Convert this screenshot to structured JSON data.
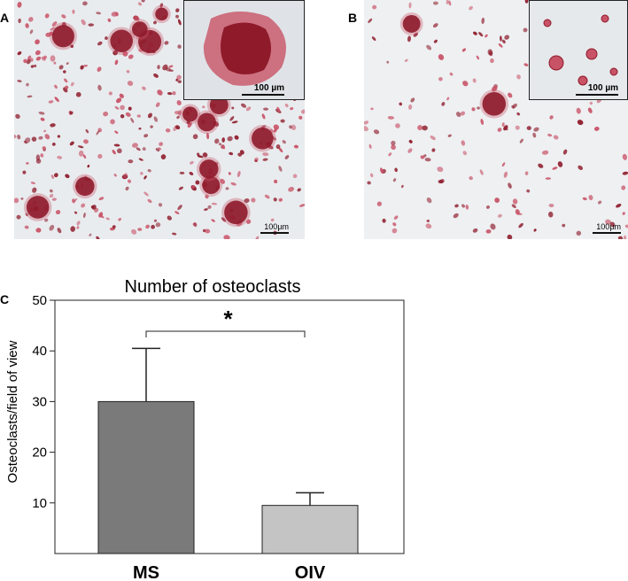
{
  "panels": {
    "a": {
      "letter": "A",
      "inset_scale": "100 µm",
      "main_scale": "100µm"
    },
    "b": {
      "letter": "B",
      "inset_scale": "100 µm",
      "main_scale": "100µm"
    },
    "c": {
      "letter": "C"
    }
  },
  "colors": {
    "stain_dark": "#8e1a2a",
    "stain_light": "#c85266",
    "background_a": "#e9ecef",
    "background_b": "#eef0f2",
    "bar_ms": "#7a7a7a",
    "bar_oiv": "#c4c4c4"
  },
  "chart_data": {
    "type": "bar",
    "title": "Number of osteoclasts",
    "ylabel": "Osteoclasts/field of view",
    "xlabel": "",
    "categories": [
      "MS",
      "OIV"
    ],
    "values": [
      30,
      9.5
    ],
    "error_upper": [
      40.5,
      12
    ],
    "ylim": [
      0,
      50
    ],
    "yticks": [
      10,
      20,
      30,
      40,
      50
    ],
    "significance": {
      "between": [
        "MS",
        "OIV"
      ],
      "label": "*"
    },
    "grid": false,
    "legend": "none"
  }
}
